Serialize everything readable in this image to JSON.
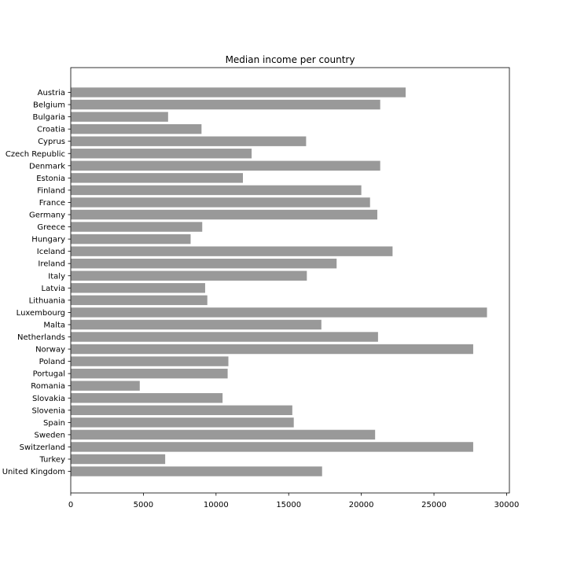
{
  "colors": {
    "bar": "#999999",
    "axis": "#000000",
    "background": "#ffffff"
  },
  "chart_data": {
    "type": "bar",
    "orientation": "horizontal",
    "title": "Median income per country",
    "xlabel": "",
    "ylabel": "",
    "xlim": [
      0,
      30000
    ],
    "xticks": [
      0,
      5000,
      10000,
      15000,
      20000,
      25000,
      30000
    ],
    "grid": false,
    "categories": [
      "Austria",
      "Belgium",
      "Bulgaria",
      "Croatia",
      "Cyprus",
      "Czech Republic",
      "Denmark",
      "Estonia",
      "Finland",
      "France",
      "Germany",
      "Greece",
      "Hungary",
      "Iceland",
      "Ireland",
      "Italy",
      "Latvia",
      "Lithuania",
      "Luxembourg",
      "Malta",
      "Netherlands",
      "Norway",
      "Poland",
      "Portugal",
      "Romania",
      "Slovakia",
      "Slovenia",
      "Spain",
      "Sweden",
      "Switzerland",
      "Turkey",
      "United Kingdom"
    ],
    "values": [
      23050,
      21300,
      6700,
      9000,
      16200,
      12450,
      21300,
      11850,
      20000,
      20600,
      21100,
      9050,
      8250,
      22150,
      18300,
      16250,
      9250,
      9400,
      28650,
      17250,
      21150,
      27700,
      10850,
      10800,
      4750,
      10450,
      15250,
      15350,
      20950,
      27700,
      6500,
      17300
    ]
  }
}
